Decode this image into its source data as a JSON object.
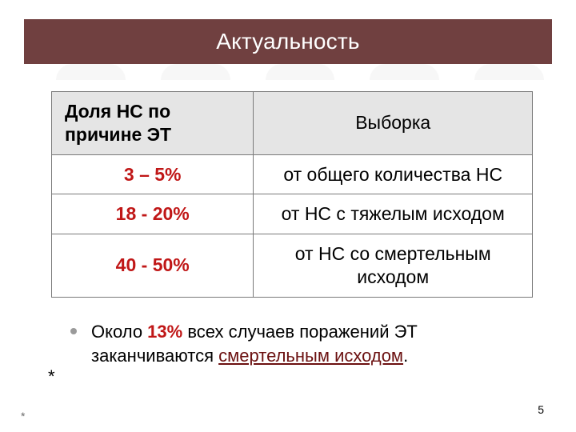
{
  "title": "Актуальность",
  "table": {
    "columns": [
      "Доля НС по причине ЭТ",
      "Выборка"
    ],
    "col_widths_pct": [
      42,
      58
    ],
    "header_bg": "#e5e5e5",
    "border_color": "#7a7a7a",
    "value_color": "#c01717",
    "rows": [
      {
        "value": "3 – 5%",
        "desc": "от общего количества НС"
      },
      {
        "value": "18 - 20%",
        "desc": "от НС с тяжелым исходом"
      },
      {
        "value": "40 - 50%",
        "desc": "от НС со смертельным исходом"
      }
    ]
  },
  "bullet": {
    "pre": "Около ",
    "highlight": "13%",
    "mid": " всех случаев поражений ЭТ заканчиваются ",
    "underline": "смертельным исходом",
    "post": "."
  },
  "asterisk1": "*",
  "asterisk2": "*",
  "page_number": "5",
  "colors": {
    "title_band_bg": "#704040",
    "title_text": "#ffffff",
    "value_red": "#c01717",
    "underline_dark": "#6b1010",
    "background": "#ffffff"
  },
  "typography": {
    "title_fontsize_pt": 21,
    "table_fontsize_pt": 17,
    "bullet_fontsize_pt": 16,
    "footer_fontsize_pt": 10,
    "font_family": "Arial"
  }
}
